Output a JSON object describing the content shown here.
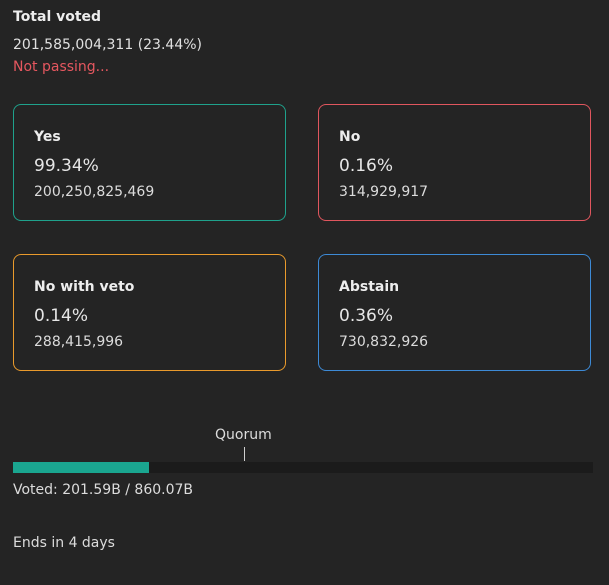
{
  "total": {
    "title": "Total voted",
    "value": "201,585,004,311 (23.44%)",
    "status": "Not passing..."
  },
  "options": [
    {
      "label": "Yes",
      "percent": "99.34%",
      "amount": "200,250,825,469",
      "color": "#1fa28c"
    },
    {
      "label": "No",
      "percent": "0.16%",
      "amount": "314,929,917",
      "color": "#e0565e"
    },
    {
      "label": "No with veto",
      "percent": "0.14%",
      "amount": "288,415,996",
      "color": "#e99a2c"
    },
    {
      "label": "Abstain",
      "percent": "0.36%",
      "amount": "730,832,926",
      "color": "#3d8ad6"
    }
  ],
  "quorum": {
    "label": "Quorum",
    "progress_fraction": 0.2344,
    "quorum_fraction": 0.4
  },
  "voted_text": "Voted: 201.59B / 860.07B",
  "ends_text": "Ends in 4 days",
  "colors": {
    "failing": "#e5575f",
    "progress": "#1aa690"
  }
}
